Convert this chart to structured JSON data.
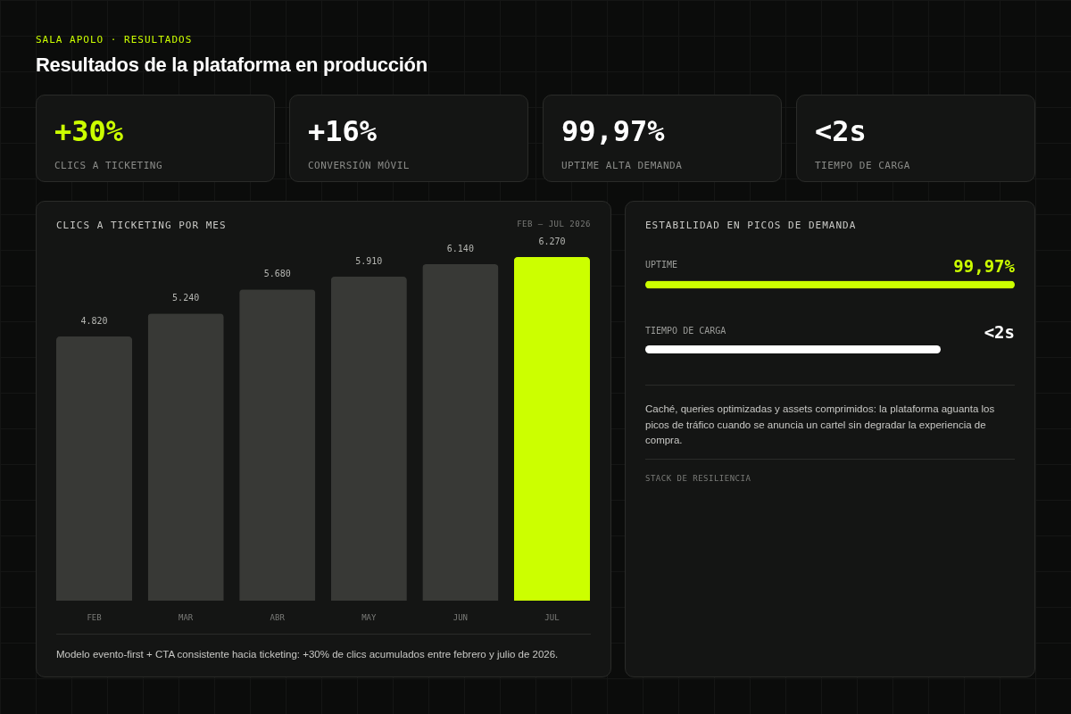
{
  "chart_data": [
    {
      "type": "other",
      "subtitle": "SALA APOLO · RESULTADOS",
      "title": "Resultados de la plataforma en producción",
      "annotations": [
        "+30%",
        "CLICS A TICKETING",
        "+16%",
        "CONVERSIÓN MÓVIL",
        "99,97%",
        "UPTIME ALTA DEMANDA",
        "<2s",
        "TIEMPO DE CARGA"
      ]
    },
    {
      "type": "bar",
      "title": "CLICS A TICKETING POR MES",
      "subtitle": "FEB – JUL 2026",
      "categories": [
        "FEB",
        "MAR",
        "ABR",
        "MAY",
        "JUN",
        "JUL"
      ],
      "values": [
        4820,
        5240,
        5680,
        5910,
        6140,
        6270
      ],
      "colors": [
        "#383936",
        "#383936",
        "#383936",
        "#383936",
        "#383936",
        "#ccff00"
      ],
      "value_labels": [
        "4.820",
        "5.240",
        "5.680",
        "5.910",
        "6.140",
        "6.270"
      ],
      "annotations": [
        "Modelo evento-first + CTA consistente hacia ticketing: +30% de clics acumulados entre febrero y julio de 2026."
      ]
    },
    {
      "type": "bar",
      "orientation": "horizontal",
      "title": "ESTABILIDAD EN PICOS DE DEMANDA",
      "categories": [
        "UPTIME",
        "TIEMPO DE CARGA"
      ],
      "values": [
        99.97,
        null
      ],
      "colors": [
        "#ccff00",
        "#ffffff"
      ],
      "value_labels": [
        "99,97%",
        "<2s"
      ],
      "annotations": [
        "Caché, queries optimizadas y assets comprimidos: la plataforma aguanta los picos de tráfico cuando se anuncia un cartel sin degradar la experiencia de compra.",
        "STACK DE RESILIENCIA"
      ]
    }
  ]
}
